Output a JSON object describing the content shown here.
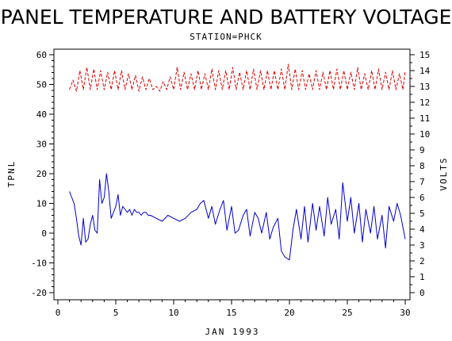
{
  "chart_data": {
    "type": "line",
    "title": "PANEL TEMPERATURE AND BATTERY VOLTAGE",
    "subtitle": "STATION=PHCK",
    "xlabel": "JAN 1993",
    "ylabel_left": "TPNL",
    "ylabel_right": "VOLTS",
    "xlim": [
      0,
      30
    ],
    "ylim_left": [
      -20,
      60
    ],
    "ylim_right": [
      0,
      15
    ],
    "xticks": [
      "0",
      "5",
      "10",
      "15",
      "20",
      "25",
      "30"
    ],
    "yticks_left": [
      "-20",
      "-10",
      "0",
      "10",
      "20",
      "30",
      "40",
      "50",
      "60"
    ],
    "yticks_right": [
      "0",
      "1",
      "2",
      "3",
      "4",
      "5",
      "6",
      "7",
      "8",
      "9",
      "10",
      "11",
      "12",
      "13",
      "14",
      "15"
    ],
    "grid": false,
    "series": [
      {
        "axis": "left",
        "color": "#0000cc",
        "style": "solid",
        "x": [
          1.0,
          1.2,
          1.4,
          1.6,
          1.8,
          2.0,
          2.2,
          2.4,
          2.6,
          2.8,
          3.0,
          3.2,
          3.4,
          3.6,
          3.8,
          4.0,
          4.2,
          4.4,
          4.6,
          4.8,
          5.0,
          5.2,
          5.4,
          5.6,
          5.8,
          6.0,
          6.2,
          6.4,
          6.6,
          6.8,
          7.0,
          7.2,
          7.4,
          7.6,
          7.8,
          8.0,
          8.5,
          9.0,
          9.5,
          10.0,
          10.5,
          11.0,
          11.5,
          12.0,
          12.3,
          12.6,
          13.0,
          13.3,
          13.6,
          14.0,
          14.3,
          14.6,
          15.0,
          15.3,
          15.6,
          16.0,
          16.3,
          16.6,
          17.0,
          17.3,
          17.6,
          18.0,
          18.3,
          18.6,
          19.0,
          19.3,
          19.6,
          20.0,
          20.3,
          20.6,
          21.0,
          21.3,
          21.6,
          22.0,
          22.3,
          22.6,
          23.0,
          23.3,
          23.6,
          24.0,
          24.3,
          24.6,
          25.0,
          25.3,
          25.6,
          26.0,
          26.3,
          26.6,
          27.0,
          27.3,
          27.6,
          28.0,
          28.3,
          28.6,
          29.0,
          29.3,
          29.6,
          30.0
        ],
        "y": [
          14,
          12,
          10,
          5,
          -1,
          -4,
          5,
          -3,
          -2,
          3,
          6,
          1,
          0,
          18,
          10,
          12,
          20,
          14,
          5,
          7,
          9,
          13,
          6,
          9,
          8,
          7,
          8,
          6,
          8,
          7,
          7,
          6,
          7,
          7,
          6,
          6,
          5,
          4,
          6,
          5,
          4,
          5,
          7,
          8,
          10,
          11,
          5,
          9,
          3,
          8,
          11,
          1,
          9,
          0,
          1,
          6,
          8,
          -1,
          7,
          5,
          0,
          7,
          -2,
          2,
          5,
          -6,
          -8,
          -9,
          1,
          8,
          -2,
          9,
          -3,
          10,
          1,
          9,
          -1,
          12,
          3,
          8,
          -2,
          17,
          4,
          12,
          0,
          10,
          -3,
          8,
          0,
          9,
          -2,
          6,
          -5,
          9,
          4,
          10,
          6,
          -2
        ]
      },
      {
        "axis": "right",
        "color": "#dd0000",
        "style": "dashed",
        "x": [
          1.0,
          1.3,
          1.6,
          1.9,
          2.2,
          2.5,
          2.8,
          3.1,
          3.4,
          3.7,
          4.0,
          4.3,
          4.6,
          4.9,
          5.2,
          5.5,
          5.8,
          6.1,
          6.4,
          6.7,
          7.0,
          7.3,
          7.6,
          7.9,
          8.2,
          8.5,
          8.8,
          9.1,
          9.4,
          9.7,
          10.0,
          10.3,
          10.6,
          10.9,
          11.2,
          11.5,
          11.8,
          12.1,
          12.4,
          12.7,
          13.0,
          13.3,
          13.6,
          13.9,
          14.2,
          14.5,
          14.8,
          15.1,
          15.4,
          15.7,
          16.0,
          16.3,
          16.6,
          16.9,
          17.2,
          17.5,
          17.8,
          18.1,
          18.4,
          18.7,
          19.0,
          19.3,
          19.6,
          19.9,
          20.2,
          20.5,
          20.8,
          21.1,
          21.4,
          21.7,
          22.0,
          22.3,
          22.6,
          22.9,
          23.2,
          23.5,
          23.8,
          24.1,
          24.4,
          24.7,
          25.0,
          25.3,
          25.6,
          25.9,
          26.2,
          26.5,
          26.8,
          27.1,
          27.4,
          27.7,
          28.0,
          28.3,
          28.6,
          28.9,
          29.2,
          29.5,
          29.8,
          30.0
        ],
        "y": [
          12.8,
          13.4,
          12.7,
          14.0,
          12.8,
          14.2,
          12.8,
          14.1,
          12.8,
          14.0,
          12.8,
          13.9,
          12.8,
          14.0,
          12.8,
          14.0,
          12.8,
          13.8,
          12.8,
          13.7,
          12.7,
          13.6,
          12.8,
          13.5,
          12.8,
          13.0,
          12.7,
          13.3,
          12.8,
          13.6,
          12.8,
          14.2,
          12.8,
          13.9,
          12.8,
          13.8,
          12.8,
          14.0,
          12.8,
          13.8,
          12.8,
          14.1,
          12.8,
          14.0,
          12.8,
          14.0,
          12.8,
          14.2,
          12.8,
          13.9,
          12.8,
          14.0,
          12.8,
          14.1,
          12.8,
          14.0,
          12.8,
          14.0,
          12.8,
          14.0,
          12.8,
          14.1,
          12.8,
          14.4,
          12.8,
          14.1,
          12.8,
          14.0,
          12.8,
          13.8,
          12.8,
          14.0,
          12.8,
          13.9,
          12.8,
          14.0,
          12.8,
          14.1,
          12.8,
          14.0,
          12.8,
          13.9,
          12.8,
          14.2,
          12.8,
          13.8,
          12.8,
          14.0,
          12.8,
          14.1,
          12.8,
          13.9,
          12.8,
          14.0,
          12.8,
          13.8,
          12.8,
          14.0
        ]
      }
    ]
  }
}
